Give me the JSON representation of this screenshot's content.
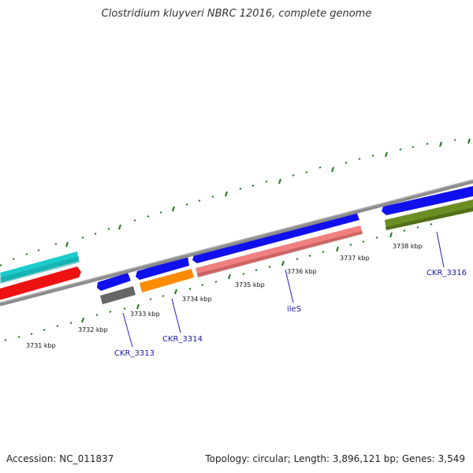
{
  "title": "Clostridium kluyveri NBRC 12016, complete genome",
  "footer": {
    "accession": "Accession: NC_011837",
    "summary": "Topology: circular; Length: 3,896,121 bp; Genes: 3,549"
  },
  "kbp_labels": [
    "3731 kbp",
    "3732 kbp",
    "3733 kbp",
    "3734 kbp",
    "3735 kbp",
    "3736 kbp",
    "3737 kbp",
    "3738 kbp"
  ],
  "gene_labels": [
    "CKR_3313",
    "CKR_3314",
    "ileS",
    "CKR_3316"
  ],
  "colors": {
    "backbone": "#8c8c8c",
    "tick": "#1a7a1a",
    "gene_blue": "#1010ee",
    "gene_cyan": "#1ccccc",
    "gene_red": "#ee1111",
    "gene_gray": "#666666",
    "gene_orange": "#ff8c00",
    "gene_pink": "#f08080",
    "gene_olive": "#6b8e23",
    "label_line": "#2020cc"
  }
}
